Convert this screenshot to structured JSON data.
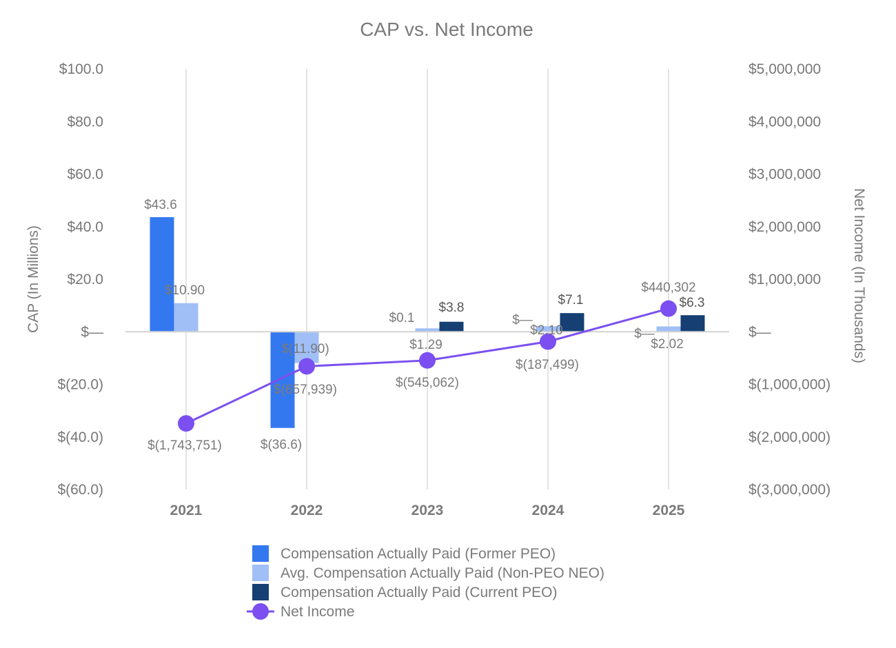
{
  "chart_data": {
    "type": "bar",
    "title": "CAP vs. Net Income",
    "categories": [
      "2021",
      "2022",
      "2023",
      "2024",
      "2025"
    ],
    "ylabel": "CAP (In Millions)",
    "y2label": "Net Income (In Thousands)",
    "ylim": [
      -60,
      100
    ],
    "y2lim": [
      -3000000,
      5000000
    ],
    "yticks": [
      -60,
      -40,
      -20,
      0,
      20,
      40,
      60,
      80,
      100
    ],
    "ytick_labels": [
      "$(60.0)",
      "$(40.0)",
      "$(20.0)",
      "$—",
      "$20.0",
      "$40.0",
      "$60.0",
      "$80.0",
      "$100.0"
    ],
    "y2ticks": [
      -3000000,
      -2000000,
      -1000000,
      0,
      1000000,
      2000000,
      3000000,
      4000000,
      5000000
    ],
    "y2tick_labels": [
      "$(3,000,000)",
      "$(2,000,000)",
      "$(1,000,000)",
      "$—",
      "$1,000,000",
      "$2,000,000",
      "$3,000,000",
      "$4,000,000",
      "$5,000,000"
    ],
    "grid": "vertical",
    "legend_position": "bottom",
    "series": [
      {
        "name": "Compensation Actually Paid (Former PEO)",
        "type": "bar",
        "axis": "left",
        "color": "#3478f0",
        "values": [
          43.6,
          -36.6,
          0.1,
          0,
          0
        ],
        "labels": [
          "$43.6",
          "$(36.6)",
          "$0.1",
          "$—",
          "$—"
        ]
      },
      {
        "name": "Avg. Compensation Actually Paid (Non-PEO NEO)",
        "type": "bar",
        "axis": "left",
        "color": "#a0bff7",
        "values": [
          10.9,
          -11.9,
          1.29,
          2.1,
          2.02
        ],
        "labels": [
          "$10.90",
          "$(11.90)",
          "$1.29",
          "$2.10",
          "$2.02"
        ]
      },
      {
        "name": "Compensation Actually Paid (Current PEO)",
        "type": "bar",
        "axis": "left",
        "color": "#163f73",
        "values": [
          0,
          0,
          3.8,
          7.1,
          6.3
        ],
        "labels": [
          "",
          "",
          "$3.8",
          "$7.1",
          "$6.3"
        ]
      },
      {
        "name": "Net Income",
        "type": "line",
        "axis": "right",
        "color": "#7b4ff0",
        "values": [
          -1743751,
          -657939,
          -545062,
          -187499,
          440302
        ],
        "labels": [
          "$(1,743,751)",
          "$(657,939)",
          "$(545,062)",
          "$(187,499)",
          "$440,302"
        ]
      }
    ]
  }
}
